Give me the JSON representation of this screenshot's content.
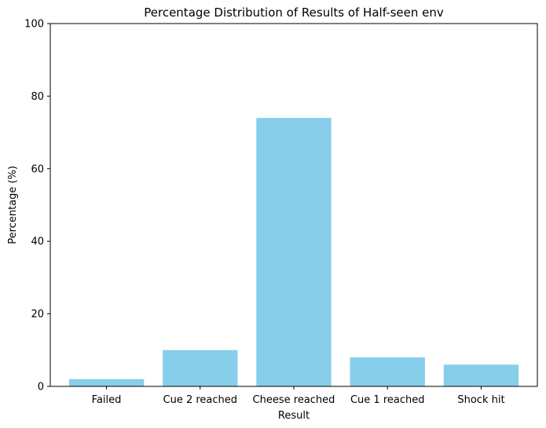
{
  "chart_data": {
    "type": "bar",
    "title": "Percentage Distribution of Results of Half-seen env",
    "xlabel": "Result",
    "ylabel": "Percentage (%)",
    "categories": [
      "Failed",
      "Cue 2 reached",
      "Cheese reached",
      "Cue 1 reached",
      "Shock hit"
    ],
    "values": [
      2,
      10,
      74,
      8,
      6
    ],
    "ylim": [
      0,
      100
    ],
    "yticks": [
      "0",
      "20",
      "40",
      "60",
      "80",
      "100"
    ],
    "bar_color": "#87ceeb",
    "grid": false,
    "legend": "none"
  }
}
